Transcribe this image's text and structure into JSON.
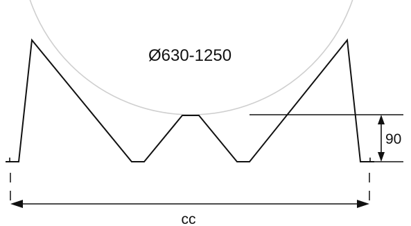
{
  "diagram": {
    "pipe_diameter_label": "Ø630-1250",
    "height_dimension_label": "90",
    "width_dimension_label": "cc",
    "colors": {
      "line": "#111111",
      "pipe_outline": "#cfcfcf",
      "background": "#ffffff"
    }
  }
}
